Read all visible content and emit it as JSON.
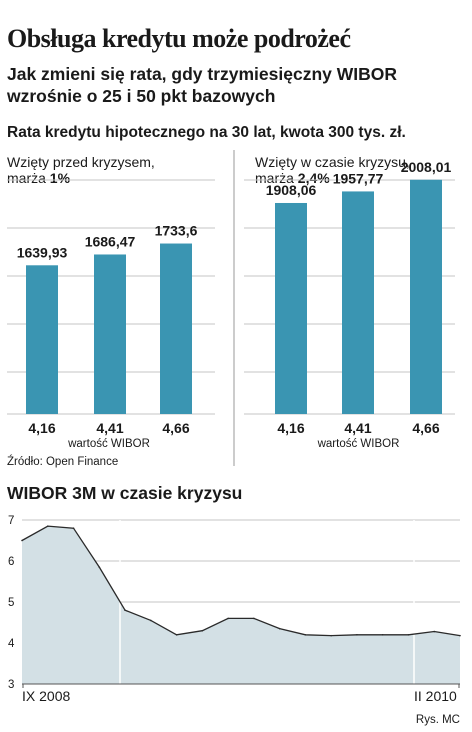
{
  "headline": "Obsługa kredytu może podrożeć",
  "subheadline": "Jak zmieni się rata, gdy trzymiesięczny WIBOR wzrośnie o 25 i 50 pkt bazowych",
  "chart_heading": "Rata kredytu hipotecznego na 30 lat, kwota 300 tys. zł.",
  "source": "Źródło: Open Finance",
  "credit": "Rys. MC",
  "colors": {
    "bar": "#3a95b2",
    "area_fill": "#d3e0e5",
    "area_line": "#2a2a2a",
    "grid": "#c4c4c4"
  },
  "chart_data": [
    {
      "type": "bar",
      "title_line1": "Wzięty przed kryzysem,",
      "title_line2_prefix": "marża ",
      "title_line2_value": "1%",
      "xlabel": "wartość WIBOR",
      "categories": [
        "4,16",
        "4,41",
        "4,66"
      ],
      "values": [
        1639.93,
        1686.47,
        1733.6
      ],
      "value_labels": [
        "1639,93",
        "1686,47",
        "1733,6"
      ]
    },
    {
      "type": "bar",
      "title_line1": "Wzięty w czasie kryzysu,",
      "title_line2_prefix": "marża ",
      "title_line2_value": "2,4%",
      "xlabel": "wartość WIBOR",
      "categories": [
        "4,16",
        "4,41",
        "4,66"
      ],
      "values": [
        1908.06,
        1957.77,
        2008.01
      ],
      "value_labels": [
        "1908,06",
        "1957,77",
        "2008,01"
      ]
    },
    {
      "type": "area",
      "title": "WIBOR 3M w czasie kryzysu",
      "ylim": [
        3,
        7
      ],
      "yticks": [
        3,
        4,
        5,
        6,
        7
      ],
      "x_start_label": "IX 2008",
      "x_end_label": "II 2010",
      "x": [
        "2008-09",
        "2008-10",
        "2008-11",
        "2008-12",
        "2009-01",
        "2009-02",
        "2009-03",
        "2009-04",
        "2009-05",
        "2009-06",
        "2009-07",
        "2009-08",
        "2009-09",
        "2009-10",
        "2009-11",
        "2009-12",
        "2010-01",
        "2010-02"
      ],
      "y": [
        6.5,
        6.85,
        6.8,
        5.85,
        4.8,
        4.55,
        4.2,
        4.3,
        4.6,
        4.6,
        4.35,
        4.2,
        4.18,
        4.2,
        4.2,
        4.2,
        4.28,
        4.18
      ]
    }
  ]
}
